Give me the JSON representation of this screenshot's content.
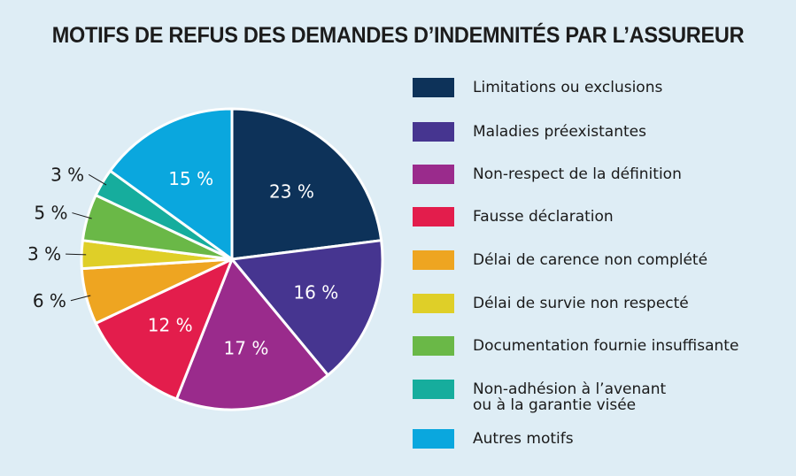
{
  "title": "MOTIFS DE REFUS DES DEMANDES D’INDEMNITÉS PAR L’ASSUREUR",
  "chart_data": {
    "type": "pie",
    "title": "MOTIFS DE REFUS DES DEMANDES D’INDEMNITÉS PAR L’ASSUREUR",
    "legend_position": "right",
    "slices": [
      {
        "label": "Limitations ou exclusions",
        "value": 23,
        "display": "23 %",
        "color": "#0d3259",
        "label_pos": "inside"
      },
      {
        "label": "Maladies préexistantes",
        "value": 16,
        "display": "16 %",
        "color": "#463590",
        "label_pos": "inside"
      },
      {
        "label": "Non-respect de la définition",
        "value": 17,
        "display": "17 %",
        "color": "#9a2b8c",
        "label_pos": "inside"
      },
      {
        "label": "Fausse déclaration",
        "value": 12,
        "display": "12 %",
        "color": "#e31d4c",
        "label_pos": "inside"
      },
      {
        "label": "Délai de carence non complété",
        "value": 6,
        "display": "6 %",
        "color": "#eea521",
        "label_pos": "outside"
      },
      {
        "label": "Délai de survie non respecté",
        "value": 3,
        "display": "3 %",
        "color": "#dfcf28",
        "label_pos": "outside"
      },
      {
        "label": "Documentation fournie insuffisante",
        "value": 5,
        "display": "5 %",
        "color": "#6ab847",
        "label_pos": "outside"
      },
      {
        "label": "Non-adhésion à l’avenant\nou à la garantie visée",
        "value": 3,
        "display": "3 %",
        "color": "#16ad9d",
        "label_pos": "outside"
      },
      {
        "label": "Autres motifs",
        "value": 15,
        "display": "15 %",
        "color": "#0aa7de",
        "label_pos": "inside"
      }
    ]
  }
}
